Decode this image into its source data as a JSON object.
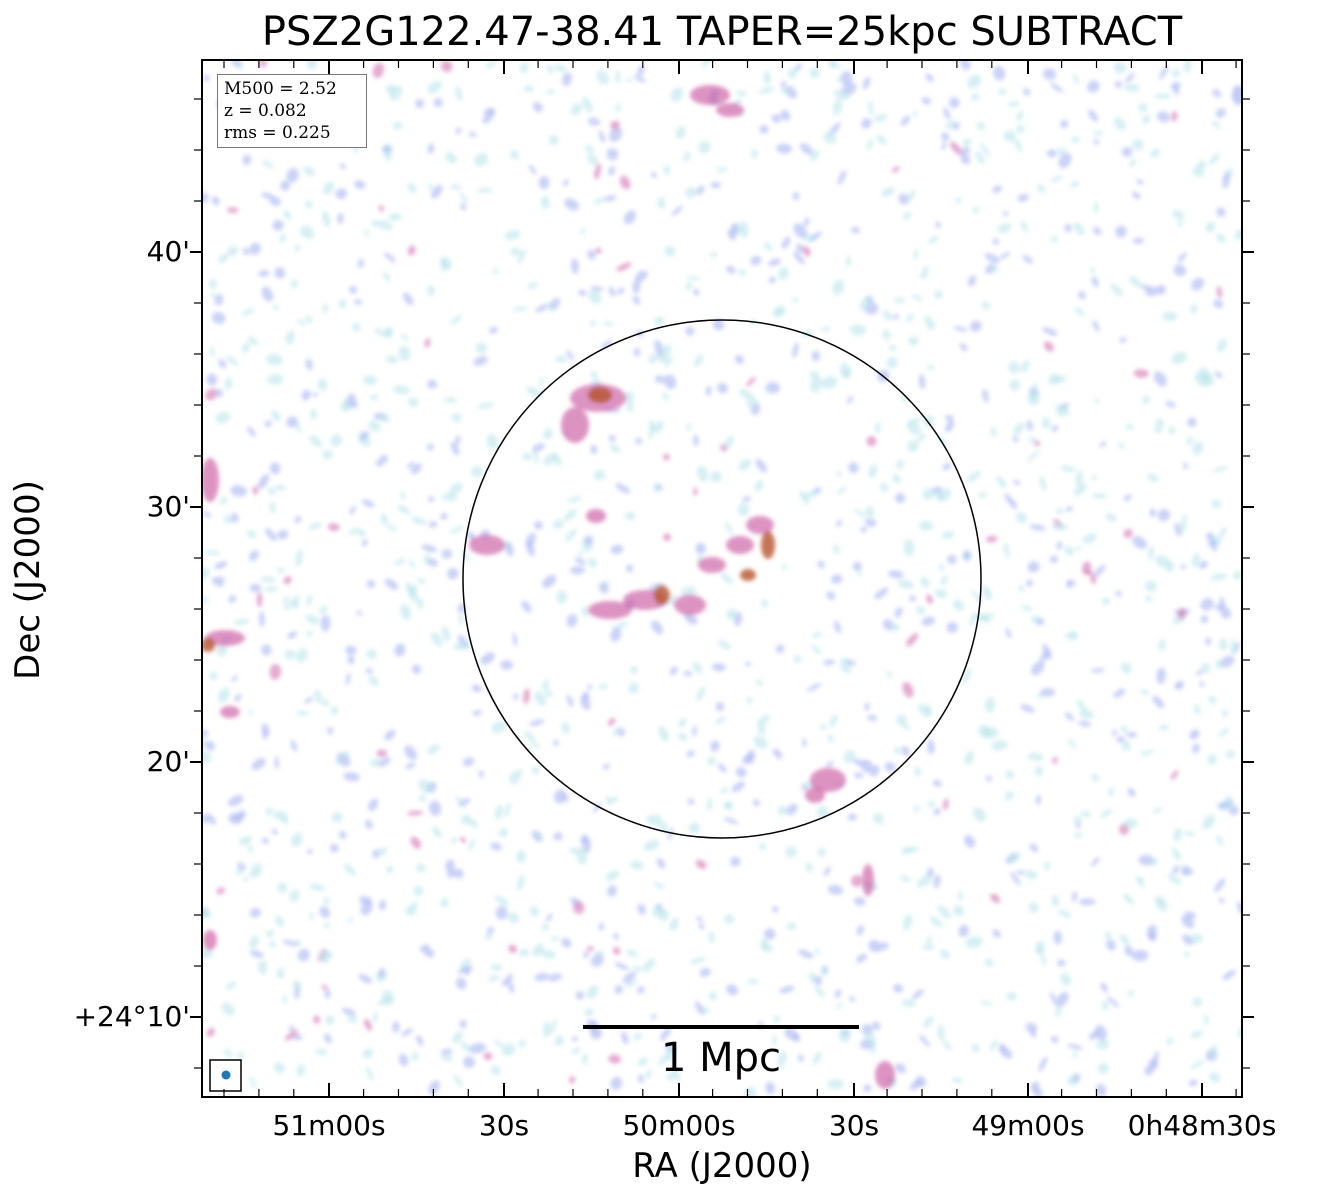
{
  "title": "PSZ2G122.47-38.41 TAPER=25kpc SUBTRACT",
  "axes": {
    "xlabel": "RA (J2000)",
    "ylabel": "Dec (J2000)",
    "x_ticks": [
      "51m00s",
      "30s",
      "50m00s",
      "30s",
      "49m00s",
      "0h48m30s"
    ],
    "y_ticks": [
      "40'",
      "30'",
      "20'",
      "+24°10'"
    ]
  },
  "info": {
    "m500": "M500 = 2.52",
    "z": "z = 0.082",
    "rms": "rms = 0.225"
  },
  "scalebar": {
    "label": "1 Mpc"
  },
  "colors": {
    "weak_emission": "#a8dfe6",
    "mid_emission": "#9aa6ee",
    "strong_emission": "#c64c9a",
    "peak_emission": "#b5542a",
    "beam": "#1f77b4"
  }
}
